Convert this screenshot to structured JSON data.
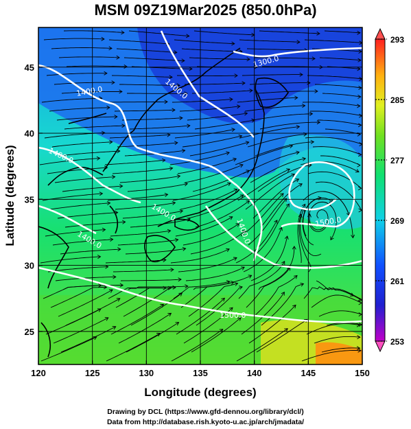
{
  "title": "MSM 09Z19Mar2025 (850.0hPa)",
  "axes": {
    "xlabel": "Longitude (degrees)",
    "ylabel": "Latitude (degrees)",
    "xlim": [
      120,
      150
    ],
    "ylim": [
      22.5,
      48
    ],
    "xticks": [
      120,
      125,
      130,
      135,
      140,
      145,
      150
    ],
    "yticks": [
      25,
      30,
      35,
      40,
      45
    ],
    "grid_step": 5
  },
  "colorbar": {
    "min": 253,
    "max": 293,
    "labels": [
      293,
      285,
      277,
      269,
      261,
      253
    ],
    "colors": [
      "#ff4fb8",
      "#a000c8",
      "#2020d0",
      "#1060ff",
      "#10d0e8",
      "#10e070",
      "#40e020",
      "#b8f020",
      "#ffd010",
      "#ff7010",
      "#ff2020"
    ]
  },
  "contours": {
    "color": "#ffffff",
    "labels": [
      "1300.0",
      "1400.0",
      "1400.0",
      "1400.0",
      "1400.0",
      "1400.0",
      "1400.0",
      "1500.0",
      "1500.0"
    ]
  },
  "credits": {
    "line1": "Drawing by DCL (https://www.gfd-dennou.org/library/dcl/)",
    "line2": "Data from http://database.rish.kyoto-u.ac.jp/arch/jmadata/"
  }
}
